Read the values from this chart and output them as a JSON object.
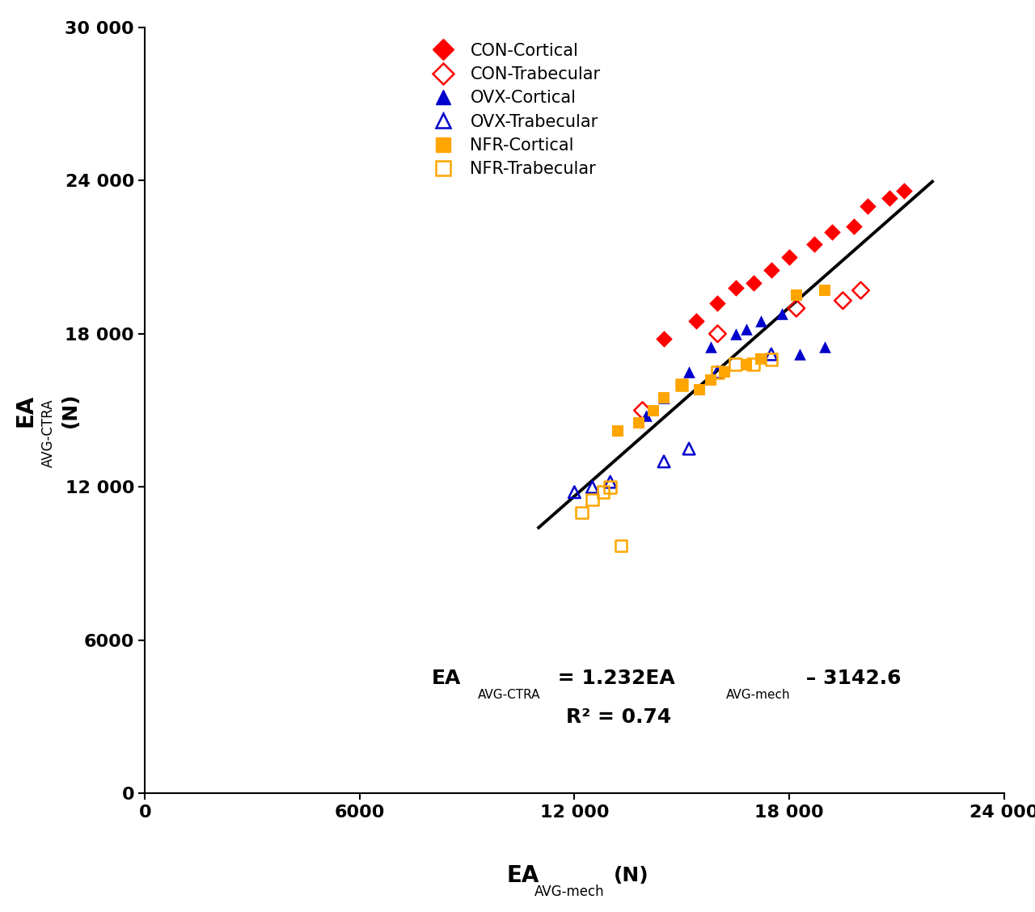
{
  "xlim": [
    0,
    24000
  ],
  "ylim": [
    0,
    30000
  ],
  "xticks": [
    0,
    6000,
    12000,
    18000,
    24000
  ],
  "yticks": [
    0,
    6000,
    12000,
    18000,
    24000,
    30000
  ],
  "xtick_labels": [
    "0",
    "6000",
    "12 000",
    "18 000",
    "24 000"
  ],
  "ytick_labels": [
    "0",
    "6000",
    "12 000",
    "18 000",
    "24 000",
    "30 000"
  ],
  "reg_slope": 1.232,
  "reg_intercept": -3142.6,
  "r2": 0.74,
  "reg_x_start": 11000,
  "reg_x_end": 22000,
  "CON_cortical_x": [
    14500,
    15400,
    16000,
    16500,
    17000,
    17500,
    18000,
    18700,
    19200,
    19800,
    20200,
    20800,
    21200
  ],
  "CON_cortical_y": [
    17800,
    18500,
    19200,
    19800,
    20000,
    20500,
    21000,
    21500,
    22000,
    22200,
    23000,
    23300,
    23600
  ],
  "CON_trabecular_x": [
    13900,
    16000,
    18200,
    19500,
    20000
  ],
  "CON_trabecular_y": [
    15000,
    18000,
    19000,
    19300,
    19700
  ],
  "OVX_cortical_x": [
    14000,
    14500,
    15200,
    15800,
    16500,
    16800,
    17200,
    17800,
    18300,
    19000
  ],
  "OVX_cortical_y": [
    14800,
    15500,
    16500,
    17500,
    18000,
    18200,
    18500,
    18800,
    17200,
    17500
  ],
  "OVX_trabecular_x": [
    12000,
    12500,
    13000,
    14500,
    15200,
    16000,
    17500
  ],
  "OVX_trabecular_y": [
    11800,
    12000,
    12200,
    13000,
    13500,
    16500,
    17200
  ],
  "NFR_cortical_x": [
    13200,
    13800,
    14200,
    14500,
    15000,
    15500,
    15800,
    16200,
    16800,
    17200,
    18200,
    19000
  ],
  "NFR_cortical_y": [
    14200,
    14500,
    15000,
    15500,
    16000,
    15800,
    16200,
    16500,
    16800,
    17000,
    19500,
    19700
  ],
  "NFR_trabecular_x": [
    12200,
    12500,
    12800,
    13000,
    15000,
    16000,
    16500,
    17000,
    17500,
    13300
  ],
  "NFR_trabecular_y": [
    11000,
    11500,
    11800,
    12000,
    16000,
    16500,
    16800,
    16800,
    17000,
    9700
  ],
  "color_red": "#FF0000",
  "color_blue": "#0000CC",
  "color_orange": "#FFA500",
  "marker_size": 110,
  "linewidth_reg": 2.8,
  "background_color": "#FFFFFF"
}
